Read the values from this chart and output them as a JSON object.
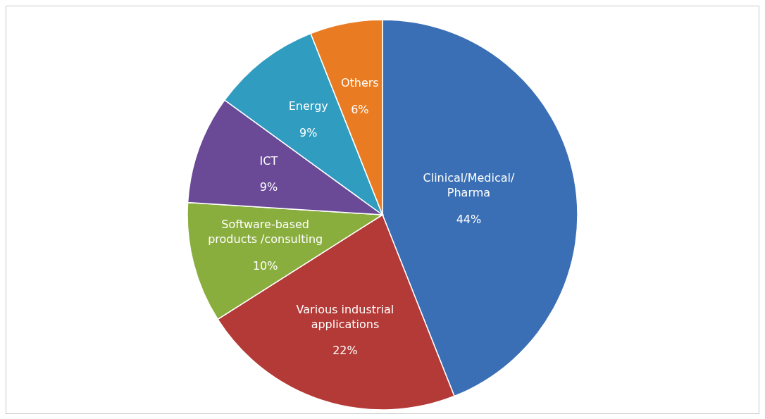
{
  "chart_data": {
    "type": "pie",
    "categories": [
      "Clinical/Medical/\nPharma",
      "Various industrial\napplications",
      "Software-based\nproducts /consulting",
      "ICT",
      "Energy",
      "Others"
    ],
    "values": [
      44,
      22,
      10,
      9,
      9,
      6
    ],
    "value_labels": [
      "44%",
      "22%",
      "10%",
      "9%",
      "9%",
      "6%"
    ],
    "colors": [
      "#3a6fb5",
      "#b33a36",
      "#8aae3e",
      "#6a4a96",
      "#2f9cc0",
      "#e97c22"
    ]
  }
}
